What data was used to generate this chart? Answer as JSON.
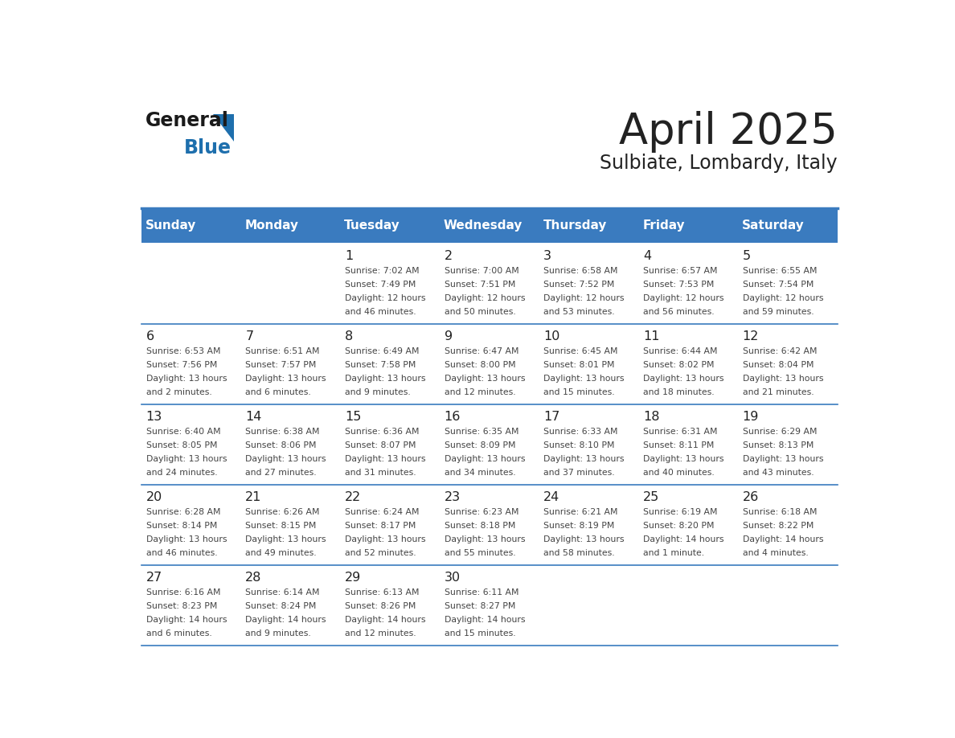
{
  "title": "April 2025",
  "subtitle": "Sulbiate, Lombardy, Italy",
  "header_color": "#3a7bbf",
  "header_text_color": "#ffffff",
  "body_bg_color": "#ffffff",
  "border_color": "#3a7bbf",
  "day_headers": [
    "Sunday",
    "Monday",
    "Tuesday",
    "Wednesday",
    "Thursday",
    "Friday",
    "Saturday"
  ],
  "text_color": "#222222",
  "cell_text_color": "#444444",
  "num_color": "#222222",
  "logo_general_color": "#1a1a1a",
  "logo_blue_color": "#1e6fad",
  "logo_triangle_color": "#1e6fad",
  "weeks": [
    {
      "days": [
        {
          "day": null,
          "info": null
        },
        {
          "day": null,
          "info": null
        },
        {
          "day": 1,
          "info": "Sunrise: 7:02 AM\nSunset: 7:49 PM\nDaylight: 12 hours\nand 46 minutes."
        },
        {
          "day": 2,
          "info": "Sunrise: 7:00 AM\nSunset: 7:51 PM\nDaylight: 12 hours\nand 50 minutes."
        },
        {
          "day": 3,
          "info": "Sunrise: 6:58 AM\nSunset: 7:52 PM\nDaylight: 12 hours\nand 53 minutes."
        },
        {
          "day": 4,
          "info": "Sunrise: 6:57 AM\nSunset: 7:53 PM\nDaylight: 12 hours\nand 56 minutes."
        },
        {
          "day": 5,
          "info": "Sunrise: 6:55 AM\nSunset: 7:54 PM\nDaylight: 12 hours\nand 59 minutes."
        }
      ]
    },
    {
      "days": [
        {
          "day": 6,
          "info": "Sunrise: 6:53 AM\nSunset: 7:56 PM\nDaylight: 13 hours\nand 2 minutes."
        },
        {
          "day": 7,
          "info": "Sunrise: 6:51 AM\nSunset: 7:57 PM\nDaylight: 13 hours\nand 6 minutes."
        },
        {
          "day": 8,
          "info": "Sunrise: 6:49 AM\nSunset: 7:58 PM\nDaylight: 13 hours\nand 9 minutes."
        },
        {
          "day": 9,
          "info": "Sunrise: 6:47 AM\nSunset: 8:00 PM\nDaylight: 13 hours\nand 12 minutes."
        },
        {
          "day": 10,
          "info": "Sunrise: 6:45 AM\nSunset: 8:01 PM\nDaylight: 13 hours\nand 15 minutes."
        },
        {
          "day": 11,
          "info": "Sunrise: 6:44 AM\nSunset: 8:02 PM\nDaylight: 13 hours\nand 18 minutes."
        },
        {
          "day": 12,
          "info": "Sunrise: 6:42 AM\nSunset: 8:04 PM\nDaylight: 13 hours\nand 21 minutes."
        }
      ]
    },
    {
      "days": [
        {
          "day": 13,
          "info": "Sunrise: 6:40 AM\nSunset: 8:05 PM\nDaylight: 13 hours\nand 24 minutes."
        },
        {
          "day": 14,
          "info": "Sunrise: 6:38 AM\nSunset: 8:06 PM\nDaylight: 13 hours\nand 27 minutes."
        },
        {
          "day": 15,
          "info": "Sunrise: 6:36 AM\nSunset: 8:07 PM\nDaylight: 13 hours\nand 31 minutes."
        },
        {
          "day": 16,
          "info": "Sunrise: 6:35 AM\nSunset: 8:09 PM\nDaylight: 13 hours\nand 34 minutes."
        },
        {
          "day": 17,
          "info": "Sunrise: 6:33 AM\nSunset: 8:10 PM\nDaylight: 13 hours\nand 37 minutes."
        },
        {
          "day": 18,
          "info": "Sunrise: 6:31 AM\nSunset: 8:11 PM\nDaylight: 13 hours\nand 40 minutes."
        },
        {
          "day": 19,
          "info": "Sunrise: 6:29 AM\nSunset: 8:13 PM\nDaylight: 13 hours\nand 43 minutes."
        }
      ]
    },
    {
      "days": [
        {
          "day": 20,
          "info": "Sunrise: 6:28 AM\nSunset: 8:14 PM\nDaylight: 13 hours\nand 46 minutes."
        },
        {
          "day": 21,
          "info": "Sunrise: 6:26 AM\nSunset: 8:15 PM\nDaylight: 13 hours\nand 49 minutes."
        },
        {
          "day": 22,
          "info": "Sunrise: 6:24 AM\nSunset: 8:17 PM\nDaylight: 13 hours\nand 52 minutes."
        },
        {
          "day": 23,
          "info": "Sunrise: 6:23 AM\nSunset: 8:18 PM\nDaylight: 13 hours\nand 55 minutes."
        },
        {
          "day": 24,
          "info": "Sunrise: 6:21 AM\nSunset: 8:19 PM\nDaylight: 13 hours\nand 58 minutes."
        },
        {
          "day": 25,
          "info": "Sunrise: 6:19 AM\nSunset: 8:20 PM\nDaylight: 14 hours\nand 1 minute."
        },
        {
          "day": 26,
          "info": "Sunrise: 6:18 AM\nSunset: 8:22 PM\nDaylight: 14 hours\nand 4 minutes."
        }
      ]
    },
    {
      "days": [
        {
          "day": 27,
          "info": "Sunrise: 6:16 AM\nSunset: 8:23 PM\nDaylight: 14 hours\nand 6 minutes."
        },
        {
          "day": 28,
          "info": "Sunrise: 6:14 AM\nSunset: 8:24 PM\nDaylight: 14 hours\nand 9 minutes."
        },
        {
          "day": 29,
          "info": "Sunrise: 6:13 AM\nSunset: 8:26 PM\nDaylight: 14 hours\nand 12 minutes."
        },
        {
          "day": 30,
          "info": "Sunrise: 6:11 AM\nSunset: 8:27 PM\nDaylight: 14 hours\nand 15 minutes."
        },
        {
          "day": null,
          "info": null
        },
        {
          "day": null,
          "info": null
        },
        {
          "day": null,
          "info": null
        }
      ]
    }
  ]
}
